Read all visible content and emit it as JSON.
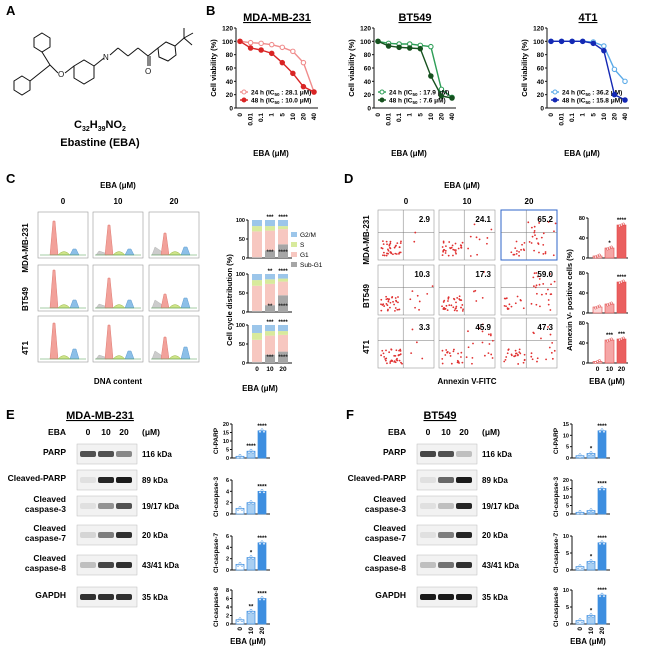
{
  "panels": {
    "A": {
      "label": "A",
      "formula": {
        "c": "C",
        "c_n": "32",
        "h": "H",
        "h_n": "39",
        "rest": "NO",
        "o_n": "2"
      },
      "name": "Ebastine (EBA)"
    },
    "B": {
      "label": "B",
      "xlabel": "EBA (μM)",
      "ylabel": "Cell viability (%)"
    },
    "C": {
      "label": "C",
      "conc_title": "EBA (μM)",
      "conc": [
        "0",
        "10",
        "20"
      ],
      "cell_lines": [
        "MDA-MB-231",
        "BT549",
        "4T1"
      ],
      "xlabel": "DNA content",
      "bar_ylabel": "Cell cycle distribution (%)",
      "bar_xlabel": "EBA (μM)",
      "legend": [
        "G2/M",
        "S",
        "G1",
        "Sub-G1"
      ]
    },
    "D": {
      "label": "D",
      "conc_title": "EBA (μM)",
      "conc": [
        "0",
        "10",
        "20"
      ],
      "cell_lines": [
        "MDA-MB-231",
        "BT549",
        "4T1"
      ],
      "xlabel": "Annexin V-FITC",
      "bar_ylabel": "Annexin V- positive cells (%)",
      "bar_xlabel": "EBA (μM)",
      "values": [
        [
          "2.9",
          "24.1",
          "65.2"
        ],
        [
          "10.3",
          "17.3",
          "59.0"
        ],
        [
          "3.3",
          "45.9",
          "47.3"
        ]
      ]
    },
    "E": {
      "label": "E",
      "title": "MDA-MB-231",
      "eba_label": "EBA",
      "unit": "(μM)",
      "conc": [
        "0",
        "10",
        "20"
      ],
      "bands": [
        "PARP",
        "Cleaved-PARP",
        "Cleaved caspase-3",
        "Cleaved caspase-7",
        "Cleaved caspase-8",
        "GAPDH"
      ],
      "kda": [
        "116 kDa",
        "89 kDa",
        "19/17 kDa",
        "20 kDa",
        "43/41 kDa",
        "35 kDa"
      ],
      "bar_ylabels": [
        "Cl-PARP",
        "Cl-caspase-3",
        "Cl-caspase-7",
        "Cl-caspase-8"
      ],
      "bar_xlabel": "EBA (μM)"
    },
    "F": {
      "label": "F",
      "title": "BT549",
      "eba_label": "EBA",
      "unit": "(μM)",
      "conc": [
        "0",
        "10",
        "20"
      ],
      "bands": [
        "PARP",
        "Cleaved-PARP",
        "Cleaved caspase-3",
        "Cleaved caspase-7",
        "Cleaved caspase-8",
        "GAPDH"
      ],
      "kda": [
        "116 kDa",
        "89 kDa",
        "19/17 kDa",
        "20 kDa",
        "43/41 kDa",
        "35 kDa"
      ],
      "bar_ylabels": [
        "Cl-PARP",
        "Cl-caspase-3",
        "Cl-caspase-7",
        "Cl-caspase-8"
      ],
      "bar_xlabel": "EBA (μM)"
    }
  },
  "chart_data": [
    {
      "type": "line",
      "id": "B1",
      "title": "MDA-MB-231",
      "xlabel": "EBA (μM)",
      "ylabel": "Cell viability (%)",
      "categories": [
        "0",
        "0.01",
        "0.1",
        "1",
        "5",
        "10",
        "20",
        "40"
      ],
      "ylim": [
        0,
        120
      ],
      "yticks": [
        0,
        20,
        40,
        60,
        80,
        100,
        120
      ],
      "series": [
        {
          "name": "24 h",
          "ic50": "28.1 μM",
          "color": "#f08c8c",
          "values": [
            100,
            98,
            97,
            95,
            91,
            85,
            68,
            24
          ]
        },
        {
          "name": "48 h",
          "ic50": "10.0 μM",
          "color": "#d92525",
          "values": [
            100,
            90,
            87,
            82,
            68,
            52,
            32,
            24
          ]
        }
      ]
    },
    {
      "type": "line",
      "id": "B2",
      "title": "BT549",
      "xlabel": "EBA (μM)",
      "ylabel": "Cell viability (%)",
      "categories": [
        "0",
        "0.01",
        "0.1",
        "1",
        "5",
        "10",
        "20",
        "40"
      ],
      "ylim": [
        0,
        120
      ],
      "yticks": [
        0,
        20,
        40,
        60,
        80,
        100,
        120
      ],
      "series": [
        {
          "name": "24 h",
          "ic50": "17.9 μM",
          "color": "#2e9e57",
          "values": [
            100,
            97,
            96,
            96,
            94,
            92,
            28,
            16
          ]
        },
        {
          "name": "48 h",
          "ic50": "7.6 μM",
          "color": "#16511f",
          "values": [
            100,
            93,
            91,
            90,
            89,
            48,
            18,
            15
          ]
        }
      ]
    },
    {
      "type": "line",
      "id": "B3",
      "title": "4T1",
      "xlabel": "EBA (μM)",
      "ylabel": "Cell viability (%)",
      "categories": [
        "0",
        "0.01",
        "0.1",
        "1",
        "5",
        "10",
        "20",
        "40"
      ],
      "ylim": [
        0,
        120
      ],
      "yticks": [
        0,
        20,
        40,
        60,
        80,
        100,
        120
      ],
      "series": [
        {
          "name": "24 h",
          "ic50": "36.2 μM",
          "color": "#5aaae8",
          "values": [
            100,
            100,
            100,
            100,
            99,
            93,
            58,
            40
          ]
        },
        {
          "name": "48 h",
          "ic50": "15.8 μM",
          "color": "#1428b4",
          "values": [
            100,
            100,
            100,
            100,
            97,
            86,
            20,
            12
          ]
        }
      ]
    },
    {
      "type": "bar",
      "id": "C-bars",
      "ylabel": "Cell cycle distribution (%)",
      "xlabel": "EBA (μM)",
      "ylim": [
        0,
        100
      ],
      "categories": [
        "0",
        "10",
        "20"
      ],
      "stack_order": [
        "Sub-G1",
        "G1",
        "S",
        "G2/M"
      ],
      "colors": {
        "Sub-G1": "#a6a6a6",
        "G1": "#f7c7c0",
        "S": "#d8ea9c",
        "G2/M": "#9cc6ea"
      },
      "groups": [
        {
          "cell_line": "MDA-MB-231",
          "significance": [
            "",
            "***",
            "****"
          ],
          "stacks": [
            {
              "Sub-G1": 2,
              "G1": 68,
              "S": 14,
              "G2/M": 16
            },
            {
              "Sub-G1": 20,
              "G1": 52,
              "S": 12,
              "G2/M": 16
            },
            {
              "Sub-G1": 36,
              "G1": 40,
              "S": 8,
              "G2/M": 16
            }
          ]
        },
        {
          "cell_line": "BT549",
          "significance": [
            "",
            "**",
            "****"
          ],
          "stacks": [
            {
              "Sub-G1": 3,
              "G1": 66,
              "S": 15,
              "G2/M": 16
            },
            {
              "Sub-G1": 18,
              "G1": 56,
              "S": 12,
              "G2/M": 14
            },
            {
              "Sub-G1": 44,
              "G1": 36,
              "S": 8,
              "G2/M": 12
            }
          ]
        },
        {
          "cell_line": "4T1",
          "significance": [
            "",
            "***",
            "****"
          ],
          "stacks": [
            {
              "Sub-G1": 3,
              "G1": 58,
              "S": 18,
              "G2/M": 21
            },
            {
              "Sub-G1": 22,
              "G1": 50,
              "S": 12,
              "G2/M": 16
            },
            {
              "Sub-G1": 30,
              "G1": 44,
              "S": 10,
              "G2/M": 16
            }
          ]
        }
      ]
    },
    {
      "type": "bar",
      "id": "D-bars",
      "ylabel": "Annexin V- positive cells (%)",
      "xlabel": "EBA (μM)",
      "categories": [
        "0",
        "10",
        "20"
      ],
      "ylim": [
        0,
        80
      ],
      "yticks": [
        0,
        40,
        80
      ],
      "groups": [
        {
          "cell_line": "MDA-MB-231",
          "values": [
            4,
            20,
            66
          ],
          "significance": [
            "",
            "*",
            "****"
          ]
        },
        {
          "cell_line": "BT549",
          "values": [
            12,
            18,
            62
          ],
          "significance": [
            "",
            "",
            "****"
          ]
        },
        {
          "cell_line": "4T1",
          "values": [
            3,
            46,
            48
          ],
          "significance": [
            "",
            "***",
            "***"
          ]
        }
      ]
    },
    {
      "type": "bar",
      "id": "E-bars",
      "xlabel": "EBA (μM)",
      "categories": [
        "0",
        "10",
        "20"
      ],
      "groups": [
        {
          "ylabel": "Cl-PARP",
          "values": [
            1,
            4,
            16
          ],
          "yticks": [
            0,
            5,
            10,
            15,
            20
          ],
          "ylim": [
            0,
            20
          ],
          "significance": [
            "",
            "****",
            "****"
          ]
        },
        {
          "ylabel": "Cl-caspase-3",
          "values": [
            1,
            2,
            4
          ],
          "yticks": [
            0,
            2,
            4,
            6
          ],
          "ylim": [
            0,
            6
          ],
          "significance": [
            "",
            "",
            "****"
          ]
        },
        {
          "ylabel": "Cl-caspase-7",
          "values": [
            1,
            2.2,
            4.8
          ],
          "yticks": [
            0,
            2,
            4,
            6
          ],
          "ylim": [
            0,
            6
          ],
          "significance": [
            "",
            "*",
            "****"
          ]
        },
        {
          "ylabel": "Cl-caspase-8",
          "values": [
            1,
            3,
            6
          ],
          "yticks": [
            0,
            2,
            4,
            6,
            8
          ],
          "ylim": [
            0,
            8
          ],
          "significance": [
            "",
            "**",
            "****"
          ]
        }
      ]
    },
    {
      "type": "bar",
      "id": "F-bars",
      "xlabel": "EBA (μM)",
      "categories": [
        "0",
        "10",
        "20"
      ],
      "groups": [
        {
          "ylabel": "Cl-PARP",
          "values": [
            1,
            2,
            12
          ],
          "yticks": [
            0,
            5,
            10,
            15
          ],
          "ylim": [
            0,
            15
          ],
          "significance": [
            "",
            "*",
            "****"
          ]
        },
        {
          "ylabel": "Cl-caspase-3",
          "values": [
            1,
            2,
            15
          ],
          "yticks": [
            0,
            5,
            10,
            15,
            20
          ],
          "ylim": [
            0,
            20
          ],
          "significance": [
            "",
            "",
            "****"
          ]
        },
        {
          "ylabel": "Cl-caspase-7",
          "values": [
            1,
            2.5,
            8
          ],
          "yticks": [
            0,
            5,
            10
          ],
          "ylim": [
            0,
            10
          ],
          "significance": [
            "",
            "*",
            "****"
          ]
        },
        {
          "ylabel": "Cl-caspase-8",
          "values": [
            1,
            2.5,
            8.5
          ],
          "yticks": [
            0,
            5,
            10
          ],
          "ylim": [
            0,
            10
          ],
          "significance": [
            "",
            "*",
            "****"
          ]
        }
      ]
    }
  ]
}
